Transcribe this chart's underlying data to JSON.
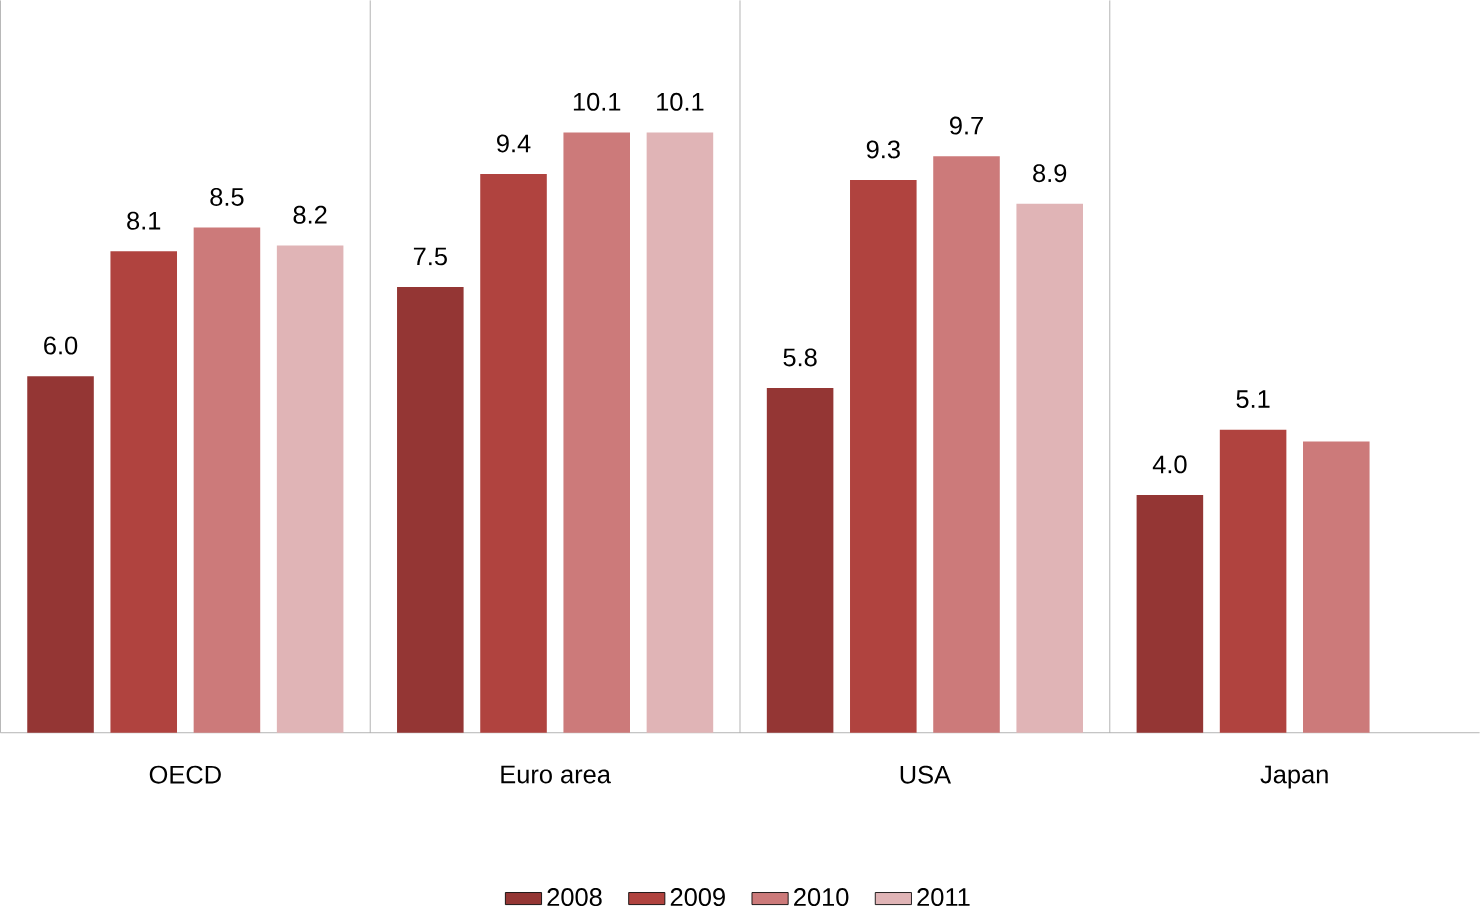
{
  "chart_data": {
    "type": "bar",
    "categories": [
      "OECD",
      "Euro area",
      "USA",
      "Japan"
    ],
    "series": [
      {
        "name": "2008",
        "color": "#943634",
        "values": [
          6.0,
          7.5,
          5.8,
          4.0
        ],
        "value_labels": [
          "6.0",
          "7.5",
          "5.8",
          "4.0"
        ]
      },
      {
        "name": "2009",
        "color": "#b0433f",
        "values": [
          8.1,
          9.4,
          9.3,
          5.1
        ],
        "value_labels": [
          "8.1",
          "9.4",
          "9.3",
          "5.1"
        ]
      },
      {
        "name": "2010",
        "color": "#cc7a7a",
        "values": [
          8.5,
          10.1,
          9.7,
          4.9
        ],
        "value_labels": [
          "8.5",
          "10.1",
          "9.7",
          null
        ]
      },
      {
        "name": "2011",
        "color": "#e0b4b6",
        "values": [
          8.2,
          10.1,
          8.9,
          null
        ],
        "value_labels": [
          "8.2",
          "10.1",
          "8.9",
          null
        ]
      }
    ],
    "legend": "bottom"
  }
}
